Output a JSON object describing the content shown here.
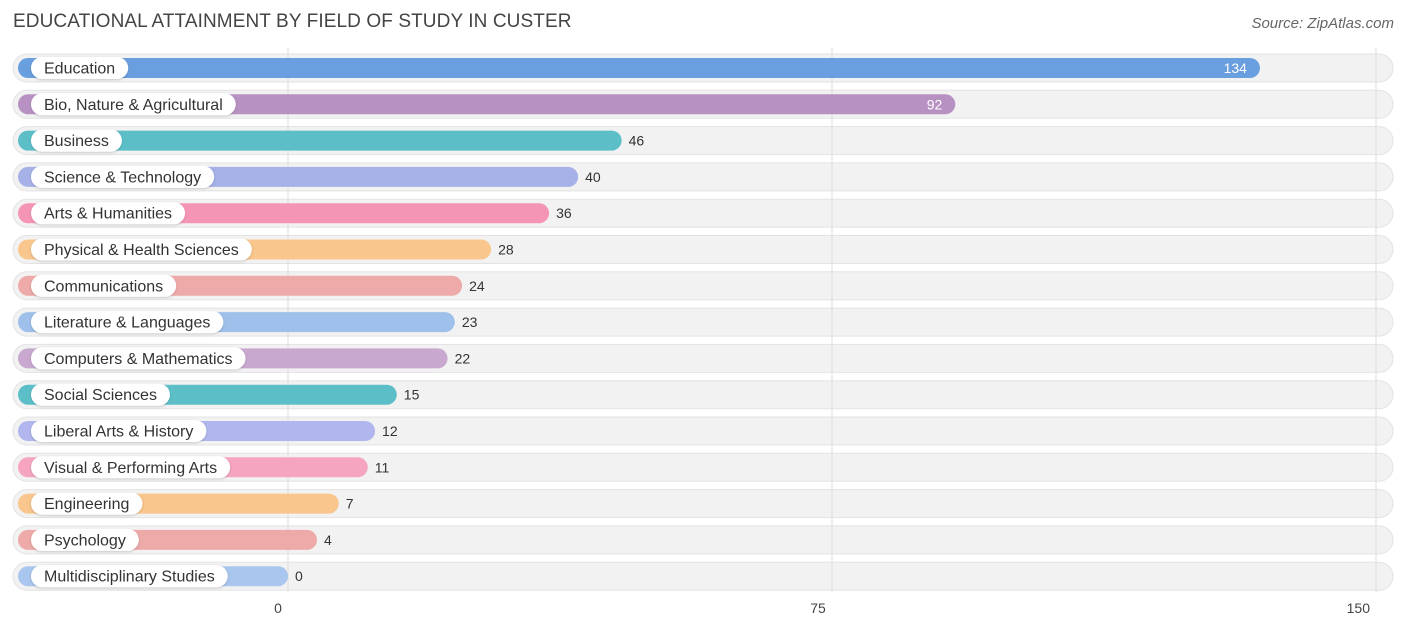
{
  "title": "EDUCATIONAL ATTAINMENT BY FIELD OF STUDY IN CUSTER",
  "source": "Source: ZipAtlas.com",
  "chart_data": {
    "type": "bar",
    "orientation": "horizontal",
    "title": "EDUCATIONAL ATTAINMENT BY FIELD OF STUDY IN CUSTER",
    "categories": [
      "Education",
      "Bio, Nature & Agricultural",
      "Business",
      "Science & Technology",
      "Arts & Humanities",
      "Physical & Health Sciences",
      "Communications",
      "Literature & Languages",
      "Computers & Mathematics",
      "Social Sciences",
      "Liberal Arts & History",
      "Visual & Performing Arts",
      "Engineering",
      "Psychology",
      "Multidisciplinary Studies"
    ],
    "values": [
      134,
      92,
      46,
      40,
      36,
      28,
      24,
      23,
      22,
      15,
      12,
      11,
      7,
      4,
      0
    ],
    "colors": [
      "#6a9fdf",
      "#b891c3",
      "#5cbfc8",
      "#a6b1e8",
      "#f595b5",
      "#f9c68d",
      "#eeaaa8",
      "#9fc0ea",
      "#c8a8cf",
      "#5cbfc8",
      "#b1b7ee",
      "#f6a5c1",
      "#f9c68d",
      "#eeaaa8",
      "#a9c6ee"
    ],
    "xticks": [
      0,
      75,
      150
    ],
    "xlim": [
      0,
      150
    ],
    "grid": true
  }
}
